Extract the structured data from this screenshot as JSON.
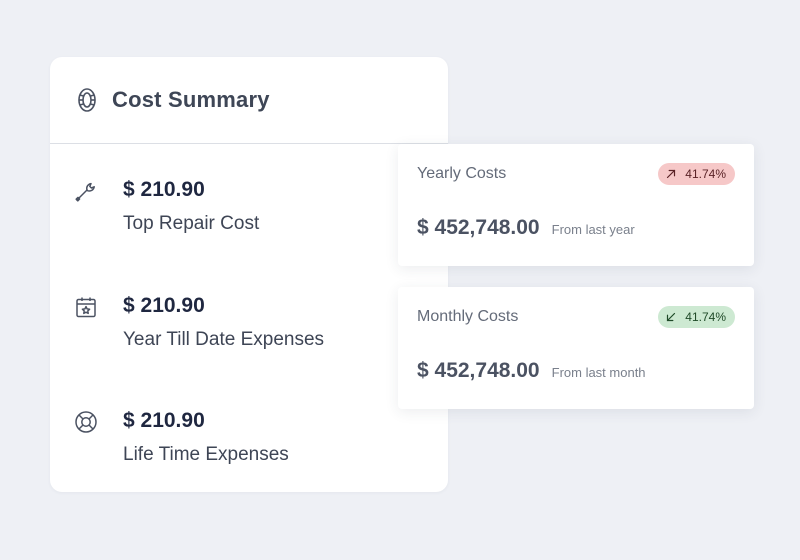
{
  "summary": {
    "title": "Cost Summary",
    "header_icon": "tire-icon",
    "items": [
      {
        "icon": "wrench-icon",
        "amount": "$ 210.90",
        "label": "Top Repair Cost"
      },
      {
        "icon": "calendar-star-icon",
        "amount": "$ 210.90",
        "label": "Year Till Date Expenses"
      },
      {
        "icon": "lifebuoy-icon",
        "amount": "$ 210.90",
        "label": "Life Time Expenses"
      }
    ]
  },
  "yearly": {
    "title": "Yearly Costs",
    "badge": "41.74%",
    "badge_direction": "up",
    "badge_color": "#f6c8c8",
    "value": "$ 452,748.00",
    "comparison": "From last year"
  },
  "monthly": {
    "title": "Monthly Costs",
    "badge": "41.74%",
    "badge_direction": "down",
    "badge_color": "#cde9d2",
    "value": "$ 452,748.00",
    "comparison": "From last month"
  }
}
